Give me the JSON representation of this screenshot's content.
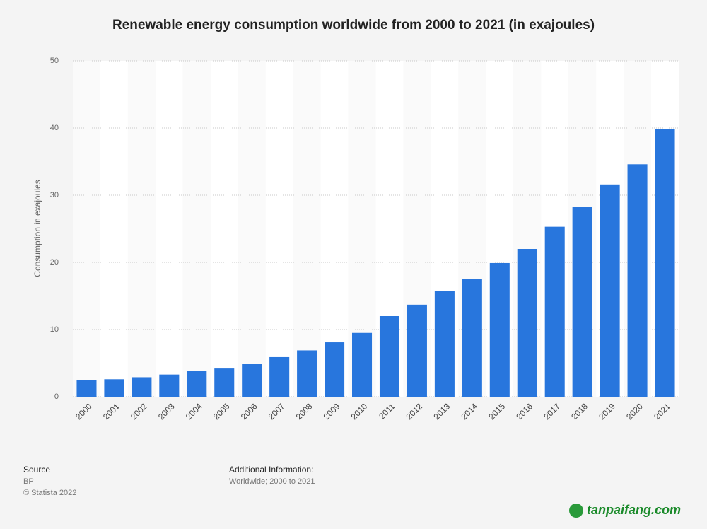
{
  "chart_data": {
    "type": "bar",
    "title": "Renewable energy consumption worldwide from 2000 to 2021 (in exajoules)",
    "y_label": "Consumption in exajoules",
    "categories": [
      "2000",
      "2001",
      "2002",
      "2003",
      "2004",
      "2005",
      "2006",
      "2007",
      "2008",
      "2009",
      "2010",
      "2011",
      "2012",
      "2013",
      "2014",
      "2015",
      "2016",
      "2017",
      "2018",
      "2019",
      "2020",
      "2021"
    ],
    "values": [
      2.5,
      2.6,
      2.9,
      3.3,
      3.8,
      4.2,
      4.9,
      5.9,
      6.9,
      8.1,
      9.5,
      12.0,
      13.7,
      15.7,
      17.5,
      19.9,
      22.0,
      25.3,
      28.3,
      31.6,
      34.6,
      39.8
    ],
    "color": "#2876dd",
    "ylim": [
      0,
      50
    ],
    "yticks": [
      0,
      10,
      20,
      30,
      40,
      50
    ],
    "grid": true
  },
  "footer": {
    "source_title": "Source",
    "source": "BP",
    "copyright": "© Statista 2022",
    "info_title": "Additional Information:",
    "info": "Worldwide; 2000 to 2021",
    "watermark": "tanpaifang.com"
  }
}
